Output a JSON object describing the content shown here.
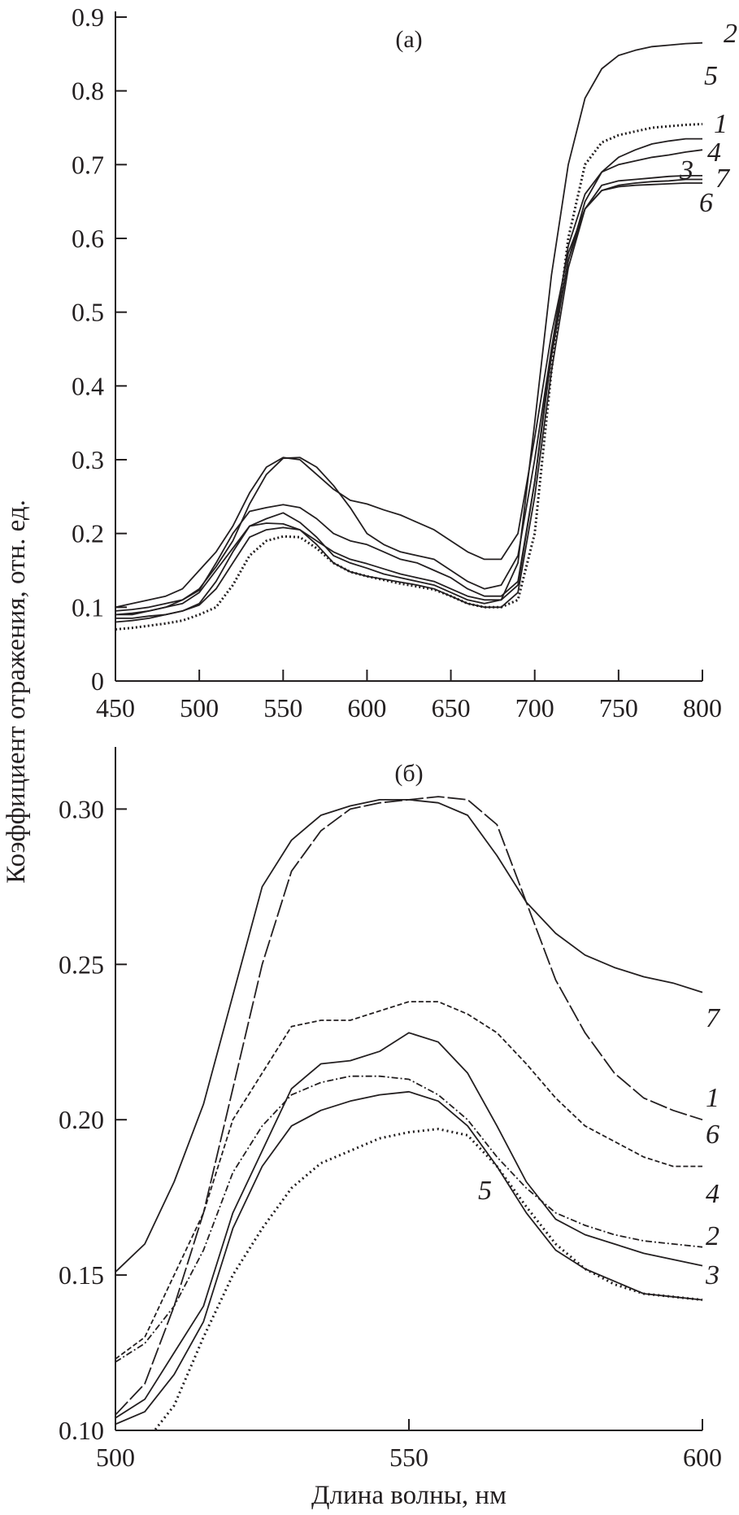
{
  "y_axis_label": "Коэффициент отражения, отн. ед.",
  "x_axis_label": "Длина волны, нм",
  "chart_data": [
    {
      "type": "line",
      "panel_label": "(a)",
      "xlim": [
        450,
        800
      ],
      "ylim": [
        0,
        0.9
      ],
      "xticks": [
        450,
        500,
        550,
        600,
        650,
        700,
        750,
        800
      ],
      "yticks": [
        0,
        0.1,
        0.2,
        0.3,
        0.4,
        0.5,
        0.6,
        0.7,
        0.8,
        0.9
      ],
      "ytick_labels": [
        "0",
        "0.1",
        "0.2",
        "0.3",
        "0.4",
        "0.5",
        "0.6",
        "0.7",
        "0.8",
        "0.9"
      ],
      "grid": false,
      "x": [
        450,
        460,
        470,
        480,
        490,
        500,
        510,
        520,
        530,
        540,
        550,
        560,
        570,
        580,
        590,
        600,
        610,
        620,
        630,
        640,
        650,
        660,
        670,
        680,
        690,
        700,
        710,
        720,
        730,
        740,
        750,
        760,
        770,
        780,
        790,
        800
      ],
      "series": [
        {
          "name": "1",
          "style": "solid",
          "values": [
            0.09,
            0.09,
            0.095,
            0.1,
            0.11,
            0.125,
            0.155,
            0.19,
            0.24,
            0.28,
            0.302,
            0.303,
            0.29,
            0.265,
            0.235,
            0.2,
            0.185,
            0.175,
            0.17,
            0.165,
            0.15,
            0.135,
            0.125,
            0.13,
            0.17,
            0.3,
            0.45,
            0.57,
            0.65,
            0.69,
            0.71,
            0.72,
            0.728,
            0.732,
            0.735,
            0.735
          ]
        },
        {
          "name": "2",
          "style": "solid",
          "values": [
            0.08,
            0.082,
            0.085,
            0.09,
            0.095,
            0.105,
            0.135,
            0.175,
            0.21,
            0.22,
            0.228,
            0.215,
            0.195,
            0.17,
            0.16,
            0.153,
            0.145,
            0.14,
            0.135,
            0.13,
            0.12,
            0.11,
            0.105,
            0.11,
            0.16,
            0.35,
            0.55,
            0.7,
            0.79,
            0.83,
            0.848,
            0.855,
            0.86,
            0.862,
            0.864,
            0.865
          ]
        },
        {
          "name": "3",
          "style": "solid",
          "values": [
            0.085,
            0.085,
            0.088,
            0.09,
            0.095,
            0.103,
            0.125,
            0.16,
            0.195,
            0.205,
            0.208,
            0.205,
            0.185,
            0.16,
            0.148,
            0.142,
            0.138,
            0.134,
            0.13,
            0.125,
            0.115,
            0.105,
            0.1,
            0.1,
            0.12,
            0.25,
            0.42,
            0.56,
            0.64,
            0.672,
            0.678,
            0.68,
            0.682,
            0.684,
            0.685,
            0.685
          ]
        },
        {
          "name": "4",
          "style": "solid",
          "values": [
            0.09,
            0.092,
            0.095,
            0.1,
            0.105,
            0.12,
            0.15,
            0.18,
            0.21,
            0.214,
            0.213,
            0.205,
            0.19,
            0.175,
            0.165,
            0.159,
            0.152,
            0.145,
            0.14,
            0.135,
            0.125,
            0.115,
            0.11,
            0.11,
            0.13,
            0.27,
            0.45,
            0.59,
            0.66,
            0.69,
            0.7,
            0.705,
            0.71,
            0.713,
            0.717,
            0.72
          ]
        },
        {
          "name": "5",
          "style": "dotted",
          "values": [
            0.07,
            0.072,
            0.075,
            0.078,
            0.082,
            0.09,
            0.1,
            0.13,
            0.17,
            0.19,
            0.196,
            0.195,
            0.18,
            0.16,
            0.148,
            0.142,
            0.137,
            0.132,
            0.128,
            0.124,
            0.115,
            0.105,
            0.1,
            0.1,
            0.11,
            0.2,
            0.42,
            0.6,
            0.7,
            0.73,
            0.74,
            0.745,
            0.75,
            0.752,
            0.754,
            0.755
          ]
        },
        {
          "name": "6",
          "style": "solid",
          "values": [
            0.095,
            0.097,
            0.1,
            0.105,
            0.11,
            0.123,
            0.16,
            0.2,
            0.23,
            0.235,
            0.239,
            0.235,
            0.22,
            0.2,
            0.19,
            0.185,
            0.175,
            0.165,
            0.16,
            0.15,
            0.14,
            0.125,
            0.115,
            0.115,
            0.135,
            0.27,
            0.44,
            0.57,
            0.64,
            0.665,
            0.67,
            0.672,
            0.673,
            0.674,
            0.675,
            0.675
          ]
        },
        {
          "name": "7",
          "style": "solid",
          "values": [
            0.1,
            0.105,
            0.11,
            0.115,
            0.125,
            0.15,
            0.175,
            0.21,
            0.255,
            0.29,
            0.303,
            0.3,
            0.28,
            0.26,
            0.245,
            0.24,
            0.232,
            0.225,
            0.215,
            0.205,
            0.19,
            0.175,
            0.165,
            0.165,
            0.2,
            0.33,
            0.47,
            0.58,
            0.64,
            0.665,
            0.672,
            0.675,
            0.677,
            0.678,
            0.68,
            0.68
          ]
        }
      ]
    },
    {
      "type": "line",
      "panel_label": "(б)",
      "xlim": [
        500,
        600
      ],
      "ylim": [
        0.1,
        0.32
      ],
      "xticks": [
        500,
        550,
        600
      ],
      "yticks": [
        0.1,
        0.15,
        0.2,
        0.25,
        0.3
      ],
      "ytick_labels": [
        "0.10",
        "0.15",
        "0.20",
        "0.25",
        "0.30"
      ],
      "grid": false,
      "x": [
        500,
        505,
        510,
        515,
        520,
        525,
        530,
        535,
        540,
        545,
        550,
        555,
        560,
        565,
        570,
        575,
        580,
        585,
        590,
        595,
        600
      ],
      "series": [
        {
          "name": "1",
          "style": "longdash",
          "values": [
            0.105,
            0.115,
            0.14,
            0.17,
            0.21,
            0.25,
            0.28,
            0.293,
            0.3,
            0.302,
            0.303,
            0.304,
            0.303,
            0.295,
            0.27,
            0.245,
            0.228,
            0.215,
            0.207,
            0.203,
            0.2
          ]
        },
        {
          "name": "2",
          "style": "solid",
          "values": [
            0.104,
            0.11,
            0.125,
            0.14,
            0.17,
            0.19,
            0.21,
            0.218,
            0.219,
            0.222,
            0.228,
            0.225,
            0.215,
            0.198,
            0.18,
            0.168,
            0.163,
            0.16,
            0.157,
            0.155,
            0.153
          ]
        },
        {
          "name": "3",
          "style": "solid",
          "values": [
            0.102,
            0.106,
            0.118,
            0.135,
            0.165,
            0.185,
            0.198,
            0.203,
            0.206,
            0.208,
            0.209,
            0.206,
            0.198,
            0.185,
            0.17,
            0.158,
            0.152,
            0.148,
            0.144,
            0.143,
            0.142
          ]
        },
        {
          "name": "4",
          "style": "dashdot",
          "values": [
            0.122,
            0.128,
            0.14,
            0.158,
            0.183,
            0.198,
            0.208,
            0.212,
            0.214,
            0.214,
            0.213,
            0.208,
            0.2,
            0.188,
            0.178,
            0.17,
            0.166,
            0.163,
            0.161,
            0.16,
            0.159
          ]
        },
        {
          "name": "5",
          "style": "dotted",
          "values": [
            0.092,
            0.096,
            0.108,
            0.13,
            0.15,
            0.165,
            0.178,
            0.186,
            0.19,
            0.194,
            0.196,
            0.197,
            0.195,
            0.185,
            0.172,
            0.16,
            0.152,
            0.147,
            0.144,
            0.143,
            0.142
          ]
        },
        {
          "name": "6",
          "style": "dashed",
          "values": [
            0.123,
            0.13,
            0.15,
            0.17,
            0.2,
            0.215,
            0.23,
            0.232,
            0.232,
            0.235,
            0.238,
            0.238,
            0.234,
            0.228,
            0.218,
            0.207,
            0.198,
            0.193,
            0.188,
            0.185,
            0.185
          ]
        },
        {
          "name": "7",
          "style": "solid",
          "values": [
            0.151,
            0.16,
            0.18,
            0.205,
            0.24,
            0.275,
            0.29,
            0.298,
            0.301,
            0.303,
            0.303,
            0.302,
            0.298,
            0.285,
            0.27,
            0.26,
            0.253,
            0.249,
            0.246,
            0.244,
            0.241
          ]
        }
      ]
    }
  ]
}
